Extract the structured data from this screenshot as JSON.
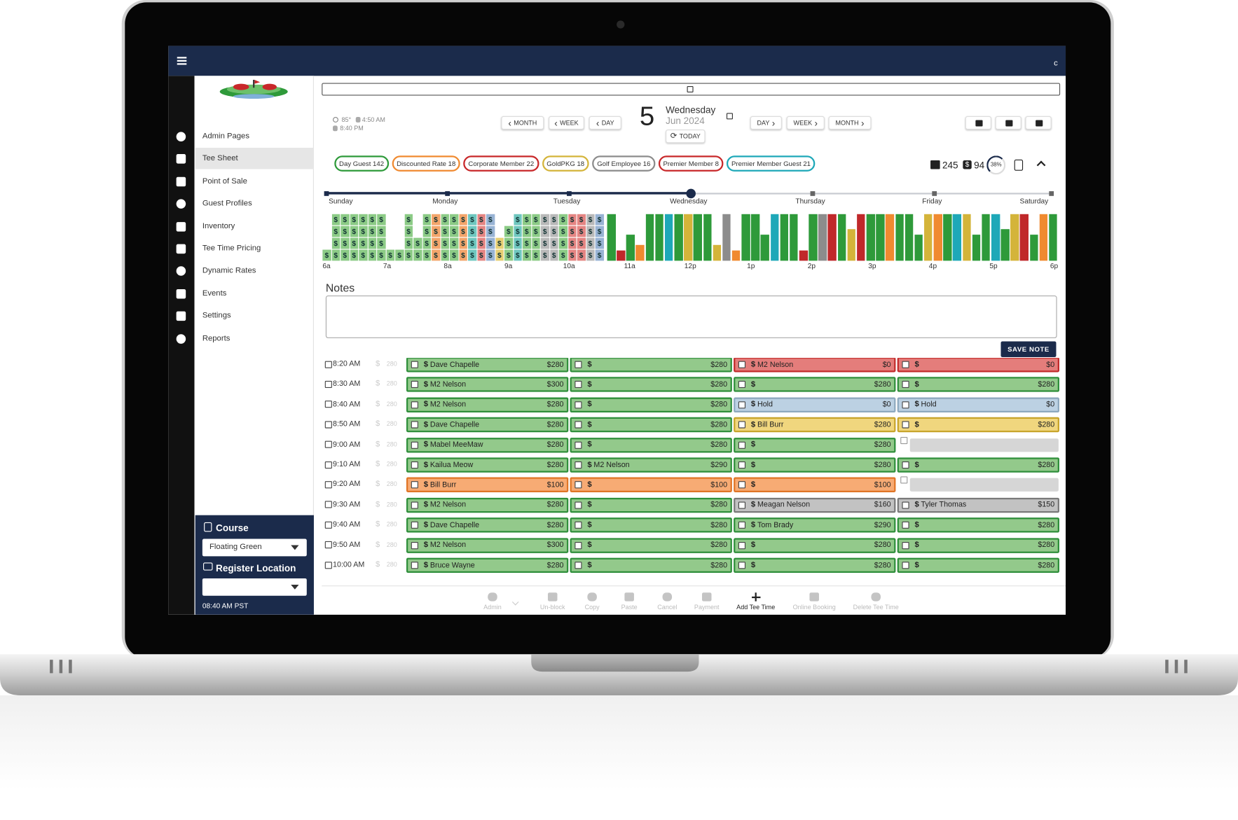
{
  "app": {
    "menu_initial": "c"
  },
  "sidebar": {
    "items": [
      "Admin Pages",
      "Tee Sheet",
      "Point of Sale",
      "Guest Profiles",
      "Inventory",
      "Tee Time Pricing",
      "Dynamic Rates",
      "Events",
      "Settings",
      "Reports"
    ],
    "active_item": 1,
    "course_label": "Course",
    "course": "Floating Green",
    "register_label": "Register Location",
    "clock": "08:40 AM PST"
  },
  "date_bar": {
    "weather": {
      "temp": "85°",
      "sunrise": "4:50 AM",
      "sunset": "8:40 PM"
    },
    "back": [
      "MONTH",
      "WEEK",
      "DAY"
    ],
    "forward": [
      "DAY",
      "WEEK",
      "MONTH"
    ],
    "day": "5",
    "weekday": "Wednesday",
    "month_year": "Jun 2024",
    "today": "TODAY"
  },
  "rate_chips": [
    {
      "label": "Day Guest 142",
      "color": "#2e9a3a"
    },
    {
      "label": "Discounted Rate 18",
      "color": "#f08a30"
    },
    {
      "label": "Corporate Member 22",
      "color": "#c8282a"
    },
    {
      "label": "GoldPKG 18",
      "color": "#d4b43a"
    },
    {
      "label": "Golf Employee 16",
      "color": "#8c8c8c"
    },
    {
      "label": "Premier Member 8",
      "color": "#c8282a"
    },
    {
      "label": "Premier Member Guest 21",
      "color": "#1ea8b8"
    }
  ],
  "stats": {
    "rounds": "245",
    "revenue": "94",
    "utilization": "38%"
  },
  "week": [
    "Sunday",
    "Monday",
    "Tuesday",
    "Wednesday",
    "Thursday",
    "Friday",
    "Saturday"
  ],
  "current_day": 3,
  "hours": [
    "6a",
    "7a",
    "8a",
    "9a",
    "10a",
    "11a",
    "12p",
    "1p",
    "2p",
    "3p",
    "4p",
    "5p",
    "6p"
  ],
  "currency": "$",
  "notes": {
    "title": "Notes",
    "save": "SAVE NOTE"
  },
  "tee_times": [
    {
      "time": "8:20 AM",
      "rate": "280",
      "slots": [
        {
          "name": "Dave Chapelle",
          "price": "$280",
          "color": "green"
        },
        {
          "price": "$280",
          "color": "green"
        },
        {
          "name": "M2 Nelson",
          "price": "$0",
          "color": "red"
        },
        {
          "price": "$0",
          "color": "red"
        }
      ]
    },
    {
      "time": "8:30 AM",
      "rate": "280",
      "slots": [
        {
          "name": "M2 Nelson",
          "price": "$300",
          "color": "green"
        },
        {
          "price": "$280",
          "color": "green"
        },
        {
          "price": "$280",
          "color": "green"
        },
        {
          "price": "$280",
          "color": "green"
        }
      ]
    },
    {
      "time": "8:40 AM",
      "rate": "280",
      "slots": [
        {
          "name": "M2 Nelson",
          "price": "$280",
          "color": "green"
        },
        {
          "price": "$280",
          "color": "green"
        },
        {
          "name": "Hold",
          "price": "$0",
          "color": "blue"
        },
        {
          "name": "Hold",
          "price": "$0",
          "color": "blue"
        }
      ]
    },
    {
      "time": "8:50 AM",
      "rate": "280",
      "slots": [
        {
          "name": "Dave Chapelle",
          "price": "$280",
          "color": "green"
        },
        {
          "price": "$280",
          "color": "green"
        },
        {
          "name": "Bill Burr",
          "price": "$280",
          "color": "yellow"
        },
        {
          "price": "$280",
          "color": "yellow"
        }
      ]
    },
    {
      "time": "9:00 AM",
      "rate": "280",
      "slots": [
        {
          "name": "Mabel MeeMaw",
          "price": "$280",
          "color": "green"
        },
        {
          "price": "$280",
          "color": "green"
        },
        {
          "price": "$280",
          "color": "green"
        },
        {
          "color": "open"
        }
      ]
    },
    {
      "time": "9:10 AM",
      "rate": "280",
      "slots": [
        {
          "name": "Kailua Meow",
          "price": "$280",
          "color": "green"
        },
        {
          "name": "M2 Nelson",
          "price": "$290",
          "color": "green"
        },
        {
          "price": "$280",
          "color": "green"
        },
        {
          "price": "$280",
          "color": "green"
        }
      ]
    },
    {
      "time": "9:20 AM",
      "rate": "280",
      "slots": [
        {
          "name": "Bill Burr",
          "price": "$100",
          "color": "orange"
        },
        {
          "price": "$100",
          "color": "orange"
        },
        {
          "price": "$100",
          "color": "orange"
        },
        {
          "color": "open"
        }
      ]
    },
    {
      "time": "9:30 AM",
      "rate": "280",
      "slots": [
        {
          "name": "M2 Nelson",
          "price": "$280",
          "color": "green"
        },
        {
          "price": "$280",
          "color": "green"
        },
        {
          "name": "Meagan Nelson",
          "price": "$160",
          "color": "gray"
        },
        {
          "name": "Tyler Thomas",
          "price": "$150",
          "color": "gray"
        }
      ]
    },
    {
      "time": "9:40 AM",
      "rate": "280",
      "slots": [
        {
          "name": "Dave Chapelle",
          "price": "$280",
          "color": "green"
        },
        {
          "price": "$280",
          "color": "green"
        },
        {
          "name": "Tom Brady",
          "price": "$290",
          "color": "green"
        },
        {
          "price": "$280",
          "color": "green"
        }
      ]
    },
    {
      "time": "9:50 AM",
      "rate": "280",
      "slots": [
        {
          "name": "M2 Nelson",
          "price": "$300",
          "color": "green"
        },
        {
          "price": "$280",
          "color": "green"
        },
        {
          "price": "$280",
          "color": "green"
        },
        {
          "price": "$280",
          "color": "green"
        }
      ]
    },
    {
      "time": "10:00 AM",
      "rate": "280",
      "slots": [
        {
          "name": "Bruce Wayne",
          "price": "$280",
          "color": "green"
        },
        {
          "price": "$280",
          "color": "green"
        },
        {
          "price": "$280",
          "color": "green"
        },
        {
          "price": "$280",
          "color": "green"
        }
      ]
    }
  ],
  "toolbar": [
    "Admin",
    "Un-block",
    "Copy",
    "Paste",
    "Cancel",
    "Payment",
    "Add Tee Time",
    "Online Booking",
    "Delete Tee Time"
  ],
  "toolbar_active": 6
}
